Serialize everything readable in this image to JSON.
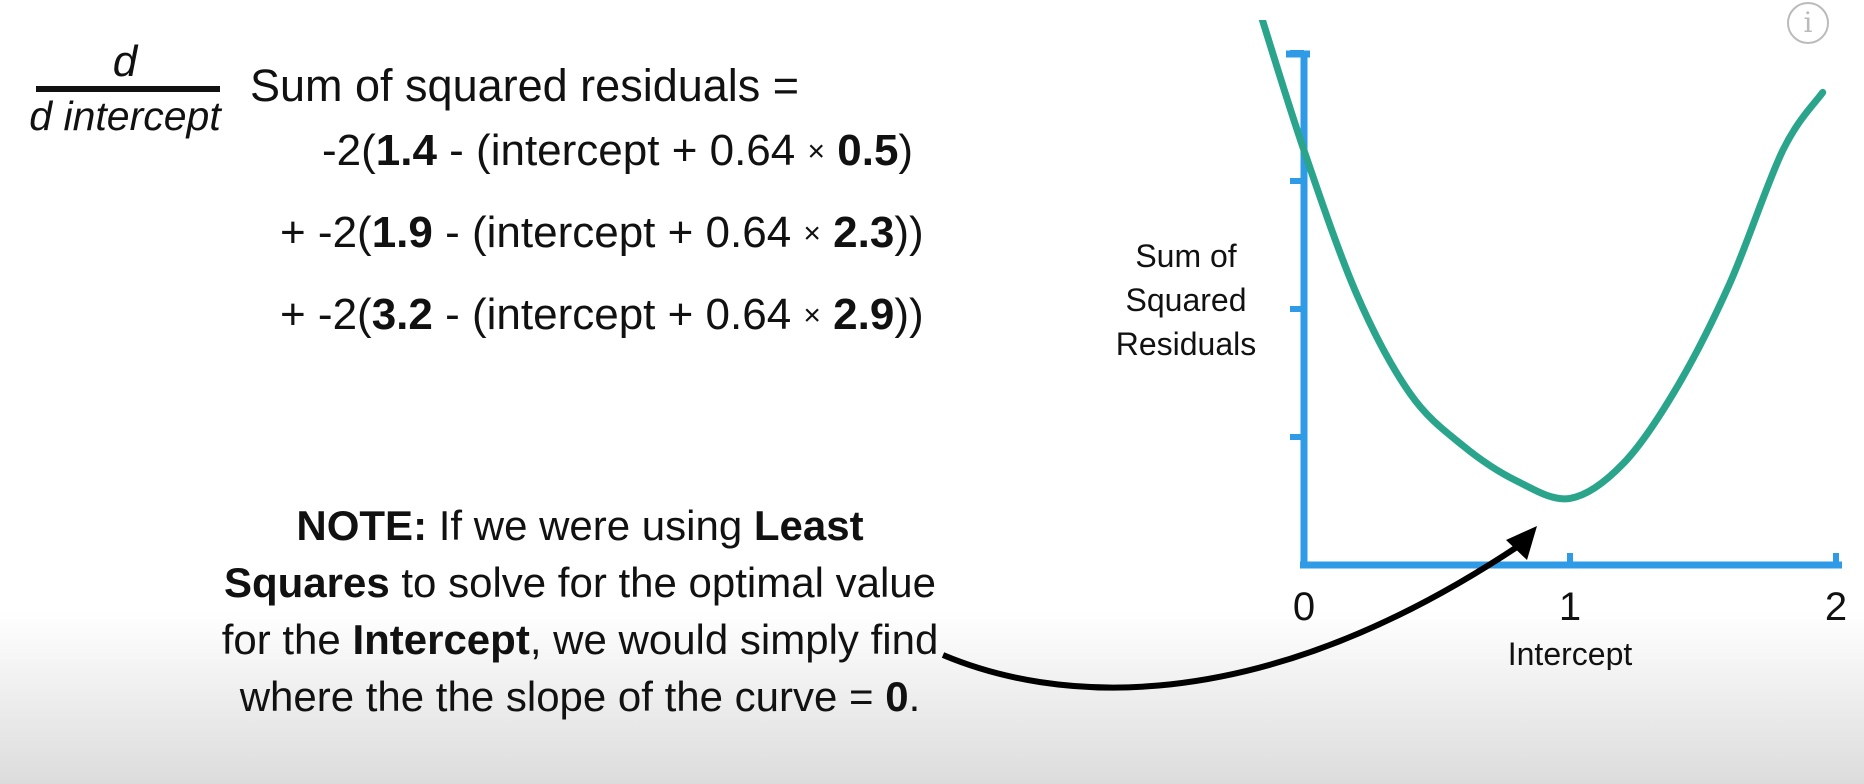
{
  "equation": {
    "numerator": "d",
    "denominator": "d intercept",
    "title": "Sum of squared residuals =",
    "lines": [
      {
        "prefix": "-2(",
        "obs": "1.4",
        "mid": " - (intercept + 0.64 ",
        "times": "×",
        "x": "0.5",
        "suffix": ")"
      },
      {
        "prefix": "+ -2(",
        "obs": "1.9",
        "mid": " - (intercept + 0.64 ",
        "times": "×",
        "x": "2.3",
        "suffix": "))"
      },
      {
        "prefix": "+ -2(",
        "obs": "3.2",
        "mid": " - (intercept + 0.64 ",
        "times": "×",
        "x": "2.9",
        "suffix": "))"
      }
    ]
  },
  "note": {
    "label": "NOTE:",
    "t1": " If we were using ",
    "b1": "Least Squares",
    "t2": " to solve for the optimal value for the ",
    "b2": "Intercept",
    "t3": ", we would simply find where the the slope of the curve = ",
    "b3": "0",
    "t4": "."
  },
  "info_icon": {
    "glyph": "i",
    "icon": "info-icon"
  },
  "chart_data": {
    "type": "line",
    "xlabel": "Intercept",
    "ylabel_lines": [
      "Sum of",
      "Squared",
      "Residuals"
    ],
    "xticks": [
      "0",
      "1",
      "2"
    ],
    "xlim": [
      0,
      2
    ],
    "y_tick_count": 4,
    "series": [
      {
        "color": "#2aa58c",
        "x": [
          -0.16,
          0.0,
          0.2,
          0.4,
          0.6,
          0.8,
          1.0,
          1.2,
          1.4,
          1.6,
          1.8,
          1.95
        ],
        "y": [
          4.25,
          3.1,
          1.85,
          1.0,
          0.55,
          0.25,
          0.1,
          0.4,
          1.05,
          1.95,
          3.1,
          3.6
        ]
      }
    ],
    "colors": {
      "axis": "#2f9be6",
      "curve": "#2aa58c",
      "arrow": "#000000"
    }
  }
}
